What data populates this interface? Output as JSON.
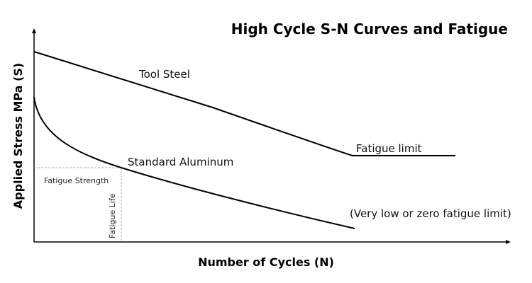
{
  "title": "High Cycle S-N Curves and Fatigue",
  "xlabel": "Number of Cycles (N)",
  "ylabel": "Applied Stress MPa (S)",
  "curves": {
    "tool_steel": "Tool Steel",
    "aluminum": "Standard Aluminum"
  },
  "annotations": {
    "fatigue_limit": "Fatigue limit",
    "no_limit": "(Very low or zero fatigue limit)",
    "fatigue_strength": "Fatigue Strength",
    "fatigue_life": "Fatigue Life"
  },
  "colors": {
    "line": "#000000",
    "guide": "#aaaaaa"
  }
}
